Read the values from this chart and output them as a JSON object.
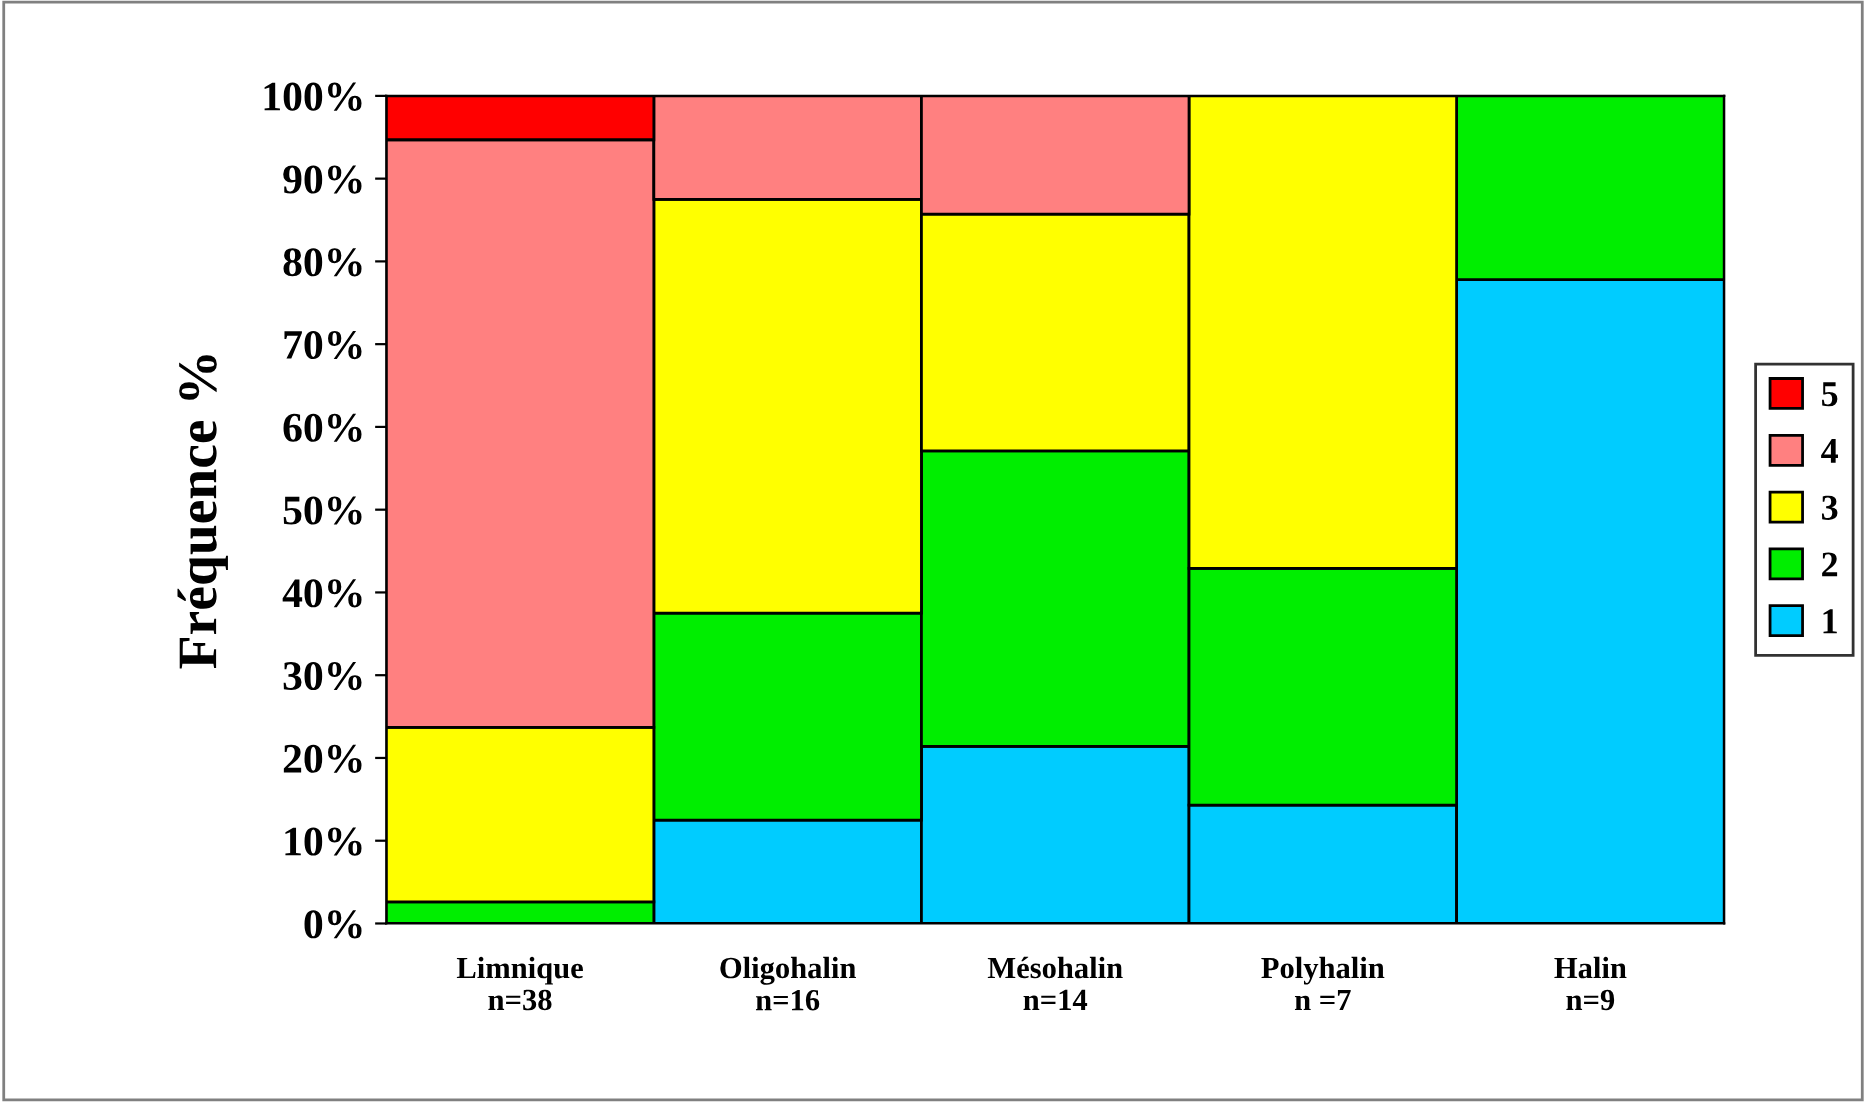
{
  "chart_data": {
    "type": "bar",
    "stacked": true,
    "ylabel": "Fréquence %",
    "categories": [
      "Limnique\nn=38",
      "Oligohalin\nn=16",
      "Mésohalin\nn=14",
      "Polyhalin\nn =7",
      "Halin\nn=9"
    ],
    "series": [
      {
        "name": "1",
        "color": "#00ccff",
        "values": [
          0,
          12.5,
          21.4,
          14.3,
          77.8
        ]
      },
      {
        "name": "2",
        "color": "#00ee00",
        "values": [
          2.6,
          25.0,
          35.7,
          28.6,
          22.2
        ]
      },
      {
        "name": "3",
        "color": "#ffff00",
        "values": [
          21.1,
          50.0,
          28.6,
          57.1,
          0
        ]
      },
      {
        "name": "4",
        "color": "#ff8080",
        "values": [
          71.0,
          12.5,
          14.3,
          0,
          0
        ]
      },
      {
        "name": "5",
        "color": "#ff0000",
        "values": [
          5.3,
          0,
          0,
          0,
          0
        ]
      }
    ],
    "ylim": [
      0,
      100
    ],
    "yticks": [
      {
        "value": 0,
        "label": "0%"
      },
      {
        "value": 10,
        "label": "10%"
      },
      {
        "value": 20,
        "label": "20%"
      },
      {
        "value": 30,
        "label": "30%"
      },
      {
        "value": 40,
        "label": "40%"
      },
      {
        "value": 50,
        "label": "50%"
      },
      {
        "value": 60,
        "label": "60%"
      },
      {
        "value": 70,
        "label": "70%"
      },
      {
        "value": 80,
        "label": "80%"
      },
      {
        "value": 90,
        "label": "90%"
      },
      {
        "value": 100,
        "label": "100%"
      }
    ],
    "grid": false,
    "legend": "right"
  }
}
